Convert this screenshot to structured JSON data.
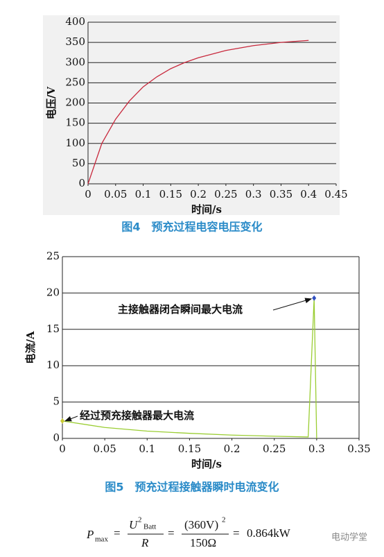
{
  "chart_data": [
    {
      "type": "line",
      "title": "图4　预充过程电容电压变化",
      "xlabel": "时间/s",
      "ylabel": "电压/V",
      "x": [
        0,
        0.025,
        0.05,
        0.075,
        0.1,
        0.125,
        0.15,
        0.175,
        0.2,
        0.25,
        0.3,
        0.35,
        0.4
      ],
      "series": [
        {
          "name": "电压",
          "color": "#c8283c",
          "values": [
            0,
            100,
            160,
            205,
            240,
            265,
            285,
            300,
            312,
            330,
            342,
            350,
            355
          ]
        }
      ],
      "xlim": [
        0,
        0.45
      ],
      "xticks": [
        0,
        0.05,
        0.1,
        0.15,
        0.2,
        0.25,
        0.3,
        0.35,
        0.4,
        0.45
      ],
      "ylim": [
        0,
        400
      ],
      "yticks": [
        0,
        50,
        100,
        150,
        200,
        250,
        300,
        350,
        400
      ],
      "grid": true
    },
    {
      "type": "line",
      "title": "图5　预充过程接触器瞬时电流变化",
      "xlabel": "时间/s",
      "ylabel": "电流/A",
      "x": [
        0,
        0.05,
        0.1,
        0.15,
        0.2,
        0.25,
        0.29,
        0.297,
        0.3
      ],
      "series": [
        {
          "name": "电流",
          "color": "#9acd32",
          "values": [
            2.4,
            1.5,
            1.0,
            0.7,
            0.45,
            0.3,
            0.2,
            19.3,
            0
          ]
        }
      ],
      "xlim": [
        0,
        0.35
      ],
      "xticks": [
        0,
        0.05,
        0.1,
        0.15,
        0.2,
        0.25,
        0.3,
        0.35
      ],
      "ylim": [
        0,
        25
      ],
      "yticks": [
        0,
        5,
        10,
        15,
        20,
        25
      ],
      "grid": true,
      "annotations": [
        {
          "text": "经过预充接触器最大电流",
          "x": 0,
          "y": 2.4,
          "color": "#c8c832"
        },
        {
          "text": "主接触器闭合瞬间最大电流",
          "x": 0.297,
          "y": 19.3,
          "color": "#3050c0"
        }
      ]
    }
  ],
  "formula": {
    "p": "P",
    "p_sub": "max",
    "eq": "=",
    "u": "U",
    "u_sup": "2",
    "u_sub": "Batt",
    "r": "R",
    "num": "(360V)",
    "num_sup": "2",
    "den": "150Ω",
    "result": "0.864kW"
  },
  "watermark": "电动学堂"
}
